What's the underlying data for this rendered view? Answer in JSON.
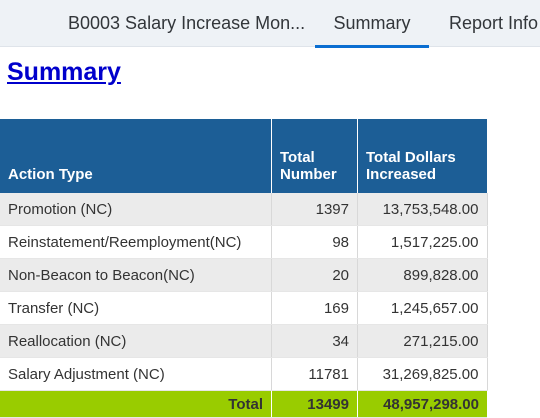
{
  "tabs": {
    "report_title": "B0003 Salary Increase Mon...",
    "summary": "Summary",
    "report_info": "Report Info"
  },
  "page_title": "Summary",
  "table": {
    "headers": {
      "action_type": "Action Type",
      "total_number": "Total Number",
      "total_dollars": "Total Dollars Increased"
    },
    "rows": [
      {
        "action": "Promotion (NC)",
        "number": "1397",
        "dollars": "13,753,548.00"
      },
      {
        "action": "Reinstatement/Reemployment(NC)",
        "number": "98",
        "dollars": "1,517,225.00"
      },
      {
        "action": "Non-Beacon to Beacon(NC)",
        "number": "20",
        "dollars": "899,828.00"
      },
      {
        "action": "Transfer (NC)",
        "number": "169",
        "dollars": "1,245,657.00"
      },
      {
        "action": "Reallocation (NC)",
        "number": "34",
        "dollars": "271,215.00"
      },
      {
        "action": "Salary Adjustment (NC)",
        "number": "11781",
        "dollars": "31,269,825.00"
      }
    ],
    "total": {
      "label": "Total",
      "number": "13499",
      "dollars": "48,957,298.00"
    }
  }
}
